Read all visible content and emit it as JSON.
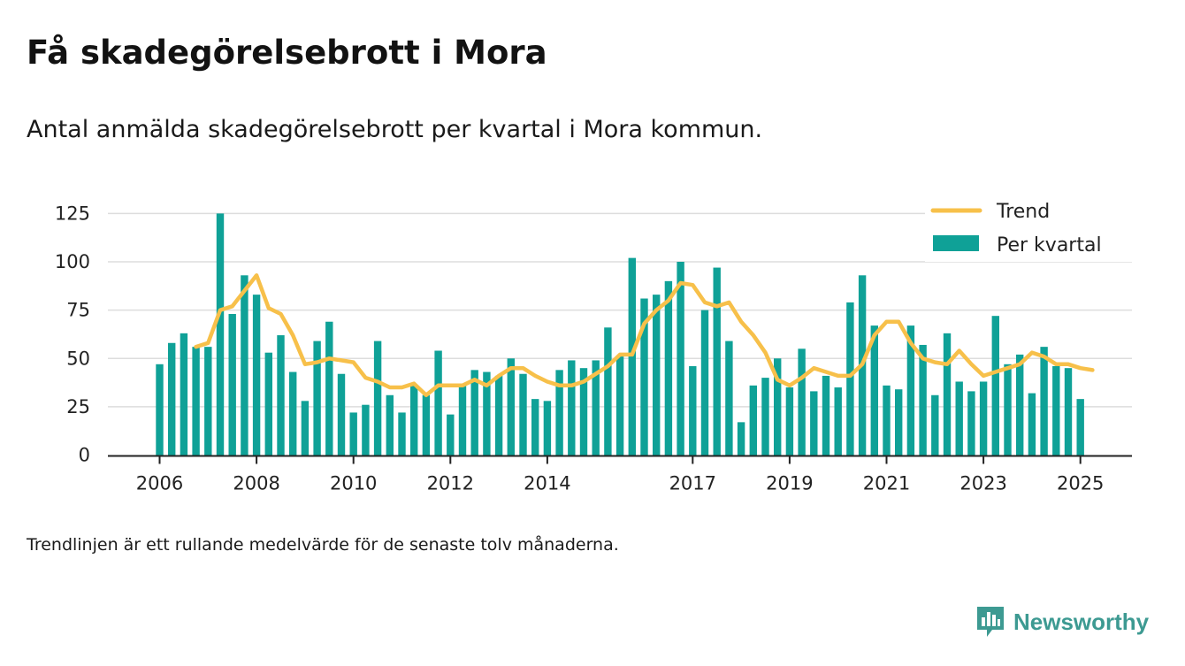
{
  "title": "Få skadegörelsebrott i Mora",
  "subtitle": "Antal anmälda skadegörelsebrott per kvartal i Mora kommun.",
  "footnote": "Trendlinjen är ett rullande medelvärde för de senaste tolv månaderna.",
  "brand": {
    "name": "Newsworthy",
    "color": "#3d9a92",
    "icon": "bar-chart-speech-bubble-icon"
  },
  "colors": {
    "bar": "#0fa197",
    "trend": "#f7c04a",
    "grid": "#dddddd",
    "axis": "#222222"
  },
  "chart_data": {
    "type": "bar",
    "title": "",
    "xlabel": "",
    "ylabel": "",
    "ylim": [
      0,
      130
    ],
    "yticks": [
      0,
      25,
      50,
      75,
      100,
      125
    ],
    "xtick_labels": [
      "2006",
      "2008",
      "2010",
      "2012",
      "2014",
      "2017",
      "2019",
      "2021",
      "2023",
      "2025"
    ],
    "grid": true,
    "legend_position": "top-right",
    "legend": [
      "Trend",
      "Per kvartal"
    ],
    "series": [
      {
        "name": "Per kvartal",
        "type": "bar",
        "values": [
          47,
          58,
          63,
          56,
          56,
          125,
          73,
          93,
          83,
          53,
          62,
          43,
          28,
          59,
          69,
          42,
          22,
          26,
          59,
          31,
          22,
          36,
          31,
          54,
          21,
          36,
          44,
          43,
          41,
          50,
          42,
          29,
          28,
          44,
          49,
          45,
          49,
          66,
          51,
          102,
          81,
          83,
          90,
          100,
          46,
          75,
          97,
          59,
          17,
          36,
          40,
          50,
          35,
          55,
          33,
          41,
          35,
          79,
          93,
          67,
          36,
          34,
          67,
          57,
          31,
          63,
          38,
          33,
          38,
          72,
          47,
          52,
          32,
          56,
          46,
          45,
          29
        ]
      },
      {
        "name": "Trend",
        "type": "line",
        "start_index": 3,
        "values": [
          56,
          58,
          75,
          77,
          85,
          93,
          76,
          73,
          62,
          47,
          48,
          50,
          49,
          48,
          40,
          38,
          35,
          35,
          37,
          31,
          36,
          36,
          36,
          39,
          36,
          41,
          45,
          45,
          41,
          38,
          36,
          36,
          38,
          42,
          46,
          52,
          52,
          68,
          75,
          80,
          89,
          88,
          79,
          77,
          79,
          69,
          62,
          53,
          39,
          36,
          40,
          45,
          43,
          41,
          41,
          47,
          62,
          69,
          69,
          58,
          50,
          48,
          47,
          54,
          47,
          41,
          43,
          45,
          47,
          53,
          51,
          47,
          47,
          45,
          44
        ]
      }
    ]
  }
}
